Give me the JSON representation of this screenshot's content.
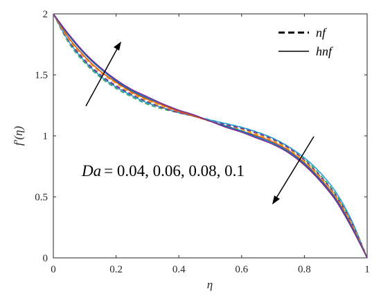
{
  "chart_data": {
    "type": "line",
    "xlabel": "η",
    "ylabel": "f′(η)",
    "xlim": [
      0,
      1
    ],
    "ylim": [
      0,
      2
    ],
    "xticks": [
      "0",
      "0.2",
      "0.4",
      "0.6",
      "0.8",
      "1"
    ],
    "yticks": [
      "0",
      "0.5",
      "1",
      "1.5",
      "2"
    ],
    "legend": {
      "placement": "top-right",
      "entries": [
        {
          "label": "nf",
          "style": "dashed"
        },
        {
          "label": "hnf",
          "style": "solid"
        }
      ]
    },
    "annotation": {
      "prefix": "Da",
      "values": "= 0.04, 0.06, 0.08, 0.1"
    },
    "x": [
      0,
      0.05,
      0.1,
      0.15,
      0.2,
      0.25,
      0.3,
      0.35,
      0.4,
      0.45,
      0.5,
      0.55,
      0.6,
      0.65,
      0.7,
      0.75,
      0.8,
      0.85,
      0.9,
      0.95,
      1
    ],
    "series": [
      {
        "color": "#3aa66b",
        "style": "dashed",
        "values": [
          2.0,
          1.76,
          1.6,
          1.48,
          1.39,
          1.32,
          1.26,
          1.22,
          1.19,
          1.16,
          1.13,
          1.1,
          1.07,
          1.03,
          0.98,
          0.91,
          0.81,
          0.68,
          0.52,
          0.3,
          0.0
        ]
      },
      {
        "color": "#2a9fd6",
        "style": "solid",
        "values": [
          2.0,
          1.77,
          1.61,
          1.49,
          1.4,
          1.33,
          1.27,
          1.23,
          1.19,
          1.16,
          1.13,
          1.1,
          1.07,
          1.03,
          0.98,
          0.91,
          0.82,
          0.7,
          0.54,
          0.31,
          0.0
        ]
      },
      {
        "color": "#7e2f8e",
        "style": "dashed",
        "values": [
          2.0,
          1.78,
          1.62,
          1.5,
          1.41,
          1.34,
          1.28,
          1.23,
          1.19,
          1.16,
          1.12,
          1.09,
          1.06,
          1.02,
          0.97,
          0.9,
          0.8,
          0.67,
          0.51,
          0.29,
          0.0
        ]
      },
      {
        "color": "#edb120",
        "style": "dashed",
        "values": [
          2.0,
          1.79,
          1.64,
          1.52,
          1.43,
          1.35,
          1.29,
          1.24,
          1.2,
          1.16,
          1.12,
          1.08,
          1.05,
          1.01,
          0.96,
          0.89,
          0.79,
          0.66,
          0.5,
          0.28,
          0.0
        ]
      },
      {
        "color": "#d95319",
        "style": "solid",
        "values": [
          2.0,
          1.8,
          1.65,
          1.53,
          1.44,
          1.36,
          1.3,
          1.25,
          1.2,
          1.16,
          1.12,
          1.08,
          1.04,
          1.0,
          0.95,
          0.88,
          0.78,
          0.65,
          0.49,
          0.27,
          0.0
        ]
      },
      {
        "color": "#0072bd",
        "style": "solid",
        "values": [
          2.0,
          1.82,
          1.67,
          1.55,
          1.45,
          1.37,
          1.31,
          1.26,
          1.21,
          1.17,
          1.12,
          1.08,
          1.04,
          0.99,
          0.94,
          0.87,
          0.77,
          0.64,
          0.48,
          0.26,
          0.0
        ]
      },
      {
        "color": "#7e2f8e",
        "style": "solid",
        "values": [
          2.0,
          1.83,
          1.68,
          1.56,
          1.46,
          1.38,
          1.32,
          1.26,
          1.21,
          1.17,
          1.12,
          1.07,
          1.03,
          0.98,
          0.93,
          0.86,
          0.76,
          0.63,
          0.47,
          0.25,
          0.0
        ]
      }
    ]
  }
}
